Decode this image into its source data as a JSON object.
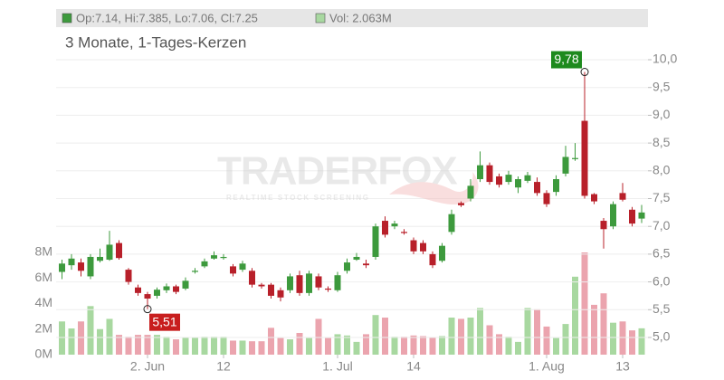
{
  "chart_data": {
    "type": "candlestick",
    "title": "3 Monate, 1-Tages-Kerzen",
    "header": [
      {
        "label": "Op:7.14, Hi:7.385, Lo:7.06, Cl:7.25",
        "color": "#3d9a3d"
      },
      {
        "label": "Vol: 2.063M",
        "color": "#a8d8a0"
      }
    ],
    "watermark": {
      "name": "TRADERFOX",
      "tagline": "REALTIME STOCK SCREENING"
    },
    "categories": [
      null,
      null,
      null,
      null,
      null,
      null,
      null,
      null,
      null,
      "2. Jun",
      null,
      null,
      null,
      null,
      null,
      null,
      null,
      "12",
      null,
      null,
      null,
      null,
      null,
      null,
      null,
      null,
      null,
      null,
      null,
      "1. Jul",
      null,
      null,
      null,
      null,
      null,
      null,
      null,
      "14",
      null,
      null,
      null,
      null,
      null,
      null,
      null,
      null,
      null,
      null,
      null,
      null,
      null,
      "1. Aug",
      null,
      null,
      null,
      null,
      null,
      null,
      null,
      "13",
      null,
      null
    ],
    "open": [
      6.18,
      6.3,
      6.35,
      6.1,
      6.38,
      6.4,
      6.7,
      6.22,
      5.9,
      5.78,
      5.75,
      5.85,
      5.92,
      5.88,
      6.18,
      6.28,
      6.42,
      6.43,
      6.28,
      6.22,
      6.2,
      5.95,
      5.95,
      5.85,
      5.85,
      6.12,
      5.8,
      6.1,
      5.88,
      5.85,
      6.2,
      6.4,
      6.33,
      6.45,
      7.1,
      7.0,
      6.9,
      6.75,
      6.7,
      6.5,
      6.38,
      6.9,
      7.42,
      7.5,
      7.85,
      8.1,
      7.9,
      7.8,
      7.7,
      7.82,
      7.8,
      7.6,
      7.62,
      7.95,
      8.22,
      8.9,
      7.58,
      7.1,
      7.0,
      7.6,
      7.3,
      7.14
    ],
    "high": [
      6.4,
      6.5,
      6.42,
      6.5,
      6.6,
      6.92,
      6.75,
      6.25,
      5.95,
      5.82,
      5.9,
      5.97,
      5.95,
      6.08,
      6.25,
      6.42,
      6.55,
      6.5,
      6.32,
      6.38,
      6.25,
      5.98,
      5.98,
      5.9,
      6.15,
      6.2,
      6.2,
      6.15,
      5.92,
      6.18,
      6.42,
      6.52,
      6.4,
      7.05,
      7.18,
      7.1,
      6.95,
      6.8,
      6.75,
      6.55,
      6.7,
      7.3,
      7.45,
      7.85,
      8.35,
      8.15,
      7.95,
      8.0,
      7.9,
      7.98,
      7.88,
      7.65,
      7.92,
      8.45,
      8.5,
      9.78,
      7.6,
      7.15,
      7.45,
      7.78,
      7.35,
      7.385
    ],
    "low": [
      6.05,
      6.22,
      6.1,
      6.05,
      6.35,
      6.38,
      6.4,
      5.95,
      5.75,
      5.51,
      5.7,
      5.8,
      5.78,
      5.85,
      6.15,
      6.25,
      6.4,
      6.4,
      6.1,
      6.18,
      5.9,
      5.88,
      5.7,
      5.65,
      5.8,
      5.75,
      5.75,
      5.85,
      5.82,
      5.82,
      6.15,
      6.38,
      6.25,
      6.4,
      6.8,
      6.95,
      6.85,
      6.5,
      6.5,
      6.25,
      6.35,
      6.85,
      7.35,
      7.45,
      7.8,
      7.75,
      7.7,
      7.75,
      7.6,
      7.78,
      7.55,
      7.35,
      7.55,
      7.9,
      8.18,
      7.5,
      7.4,
      6.6,
      6.95,
      7.45,
      7.0,
      7.06
    ],
    "close": [
      6.33,
      6.42,
      6.2,
      6.45,
      6.45,
      6.67,
      6.43,
      6.0,
      5.8,
      5.7,
      5.86,
      5.92,
      5.82,
      6.02,
      6.2,
      6.37,
      6.48,
      6.45,
      6.15,
      6.33,
      5.95,
      5.92,
      5.75,
      5.72,
      6.1,
      5.8,
      6.15,
      5.9,
      5.86,
      6.12,
      6.35,
      6.45,
      6.3,
      7.0,
      6.85,
      7.05,
      6.88,
      6.55,
      6.55,
      6.3,
      6.65,
      7.22,
      7.38,
      7.73,
      8.1,
      7.8,
      7.75,
      7.93,
      7.85,
      7.92,
      7.6,
      7.4,
      7.85,
      8.25,
      8.23,
      7.55,
      7.45,
      6.95,
      7.4,
      7.48,
      7.05,
      7.25
    ],
    "volume": [
      2.6,
      2.05,
      2.6,
      3.8,
      2.0,
      2.8,
      1.55,
      1.4,
      1.55,
      1.55,
      1.55,
      1.4,
      1.2,
      1.35,
      1.35,
      1.4,
      1.4,
      1.4,
      1.1,
      1.1,
      1.05,
      1.05,
      2.1,
      1.3,
      1.2,
      1.7,
      1.3,
      2.8,
      1.3,
      1.6,
      1.5,
      1.0,
      1.6,
      3.1,
      2.9,
      1.4,
      1.4,
      1.5,
      1.45,
      1.35,
      1.45,
      2.9,
      2.8,
      2.9,
      3.65,
      2.3,
      1.6,
      1.4,
      1.0,
      3.65,
      3.55,
      2.2,
      1.3,
      2.4,
      6.1,
      8.0,
      3.9,
      4.8,
      2.5,
      2.6,
      1.9,
      2.063
    ],
    "up_color": "#3d9a3d",
    "down_color": "#b8202a",
    "volume_up_color": "#a8d8a0",
    "volume_down_color": "#eba4ae",
    "ylim": [
      4.69,
      10.88
    ],
    "yticks": [
      {
        "value": 5.0,
        "label": "5,0"
      },
      {
        "value": 5.5,
        "label": "5,5"
      },
      {
        "value": 6.0,
        "label": "6,0"
      },
      {
        "value": 6.5,
        "label": "6,5"
      },
      {
        "value": 7.0,
        "label": "7,0"
      },
      {
        "value": 7.5,
        "label": "7,5"
      },
      {
        "value": 8.0,
        "label": "8,0"
      },
      {
        "value": 8.5,
        "label": "8,5"
      },
      {
        "value": 9.0,
        "label": "9,0"
      },
      {
        "value": 9.5,
        "label": "9,5"
      },
      {
        "value": 10.0,
        "label": "10,0"
      }
    ],
    "volume_ylim": [
      0,
      26.9
    ],
    "volume_yticks": [
      {
        "value": 0,
        "label": "0M"
      },
      {
        "value": 2,
        "label": "2M"
      },
      {
        "value": 4,
        "label": "4M"
      },
      {
        "value": 6,
        "label": "6M"
      },
      {
        "value": 8,
        "label": "8M"
      }
    ],
    "annotations": [
      {
        "value": 9.78,
        "label": "9,78",
        "color": "#1e8a1e"
      },
      {
        "value": 5.51,
        "label": "5,51",
        "color": "#c81e1e"
      }
    ],
    "grid": true
  }
}
